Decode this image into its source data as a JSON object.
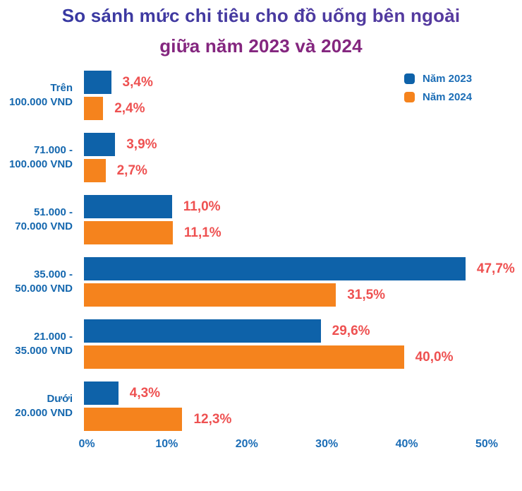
{
  "title": {
    "line1": "So sánh mức chi tiêu cho đồ uống bên ngoài",
    "line2": "giữa năm 2023 và 2024"
  },
  "legend": [
    {
      "label": "Năm 2023",
      "color": "#0E62A9"
    },
    {
      "label": "Năm 2024",
      "color": "#F5831D"
    }
  ],
  "colors": {
    "bar_2023": "#0E62A9",
    "bar_2024": "#F5831D",
    "value_label": "#EE5151",
    "category_label": "#1467AE",
    "axis_label": "#1B6DB6",
    "title_line1_start": "#3339A2",
    "title_line1_end": "#5C3A9E",
    "title_line2": "#84267F",
    "background": "#FFFFFF"
  },
  "chart_data": {
    "type": "bar",
    "orientation": "horizontal",
    "title": "So sánh mức chi tiêu cho đồ uống bên ngoài giữa năm 2023 và 2024",
    "xlabel": "",
    "ylabel": "",
    "grid": false,
    "legend_position": "top-right",
    "xlim": [
      0,
      50
    ],
    "x_ticks": [
      "0%",
      "10%",
      "20%",
      "30%",
      "40%",
      "50%"
    ],
    "x_tick_values": [
      0,
      10,
      20,
      30,
      40,
      50
    ],
    "categories": [
      [
        "Trên",
        "100.000 VND"
      ],
      [
        "71.000 -",
        "100.000 VND"
      ],
      [
        "51.000 -",
        "70.000 VND"
      ],
      [
        "35.000 -",
        "50.000 VND"
      ],
      [
        "21.000 -",
        "35.000 VND"
      ],
      [
        "Dưới",
        "20.000 VND"
      ]
    ],
    "series": [
      {
        "name": "Năm 2023",
        "color": "#0E62A9",
        "values": [
          3.4,
          3.9,
          11.0,
          47.7,
          29.6,
          4.3
        ],
        "labels": [
          "3,4%",
          "3,9%",
          "11,0%",
          "47,7%",
          "29,6%",
          "4,3%"
        ]
      },
      {
        "name": "Năm 2024",
        "color": "#F5831D",
        "values": [
          2.4,
          2.7,
          11.1,
          31.5,
          40.0,
          12.3
        ],
        "labels": [
          "2,4%",
          "2,7%",
          "11,1%",
          "31,5%",
          "40,0%",
          "12,3%"
        ]
      }
    ]
  }
}
